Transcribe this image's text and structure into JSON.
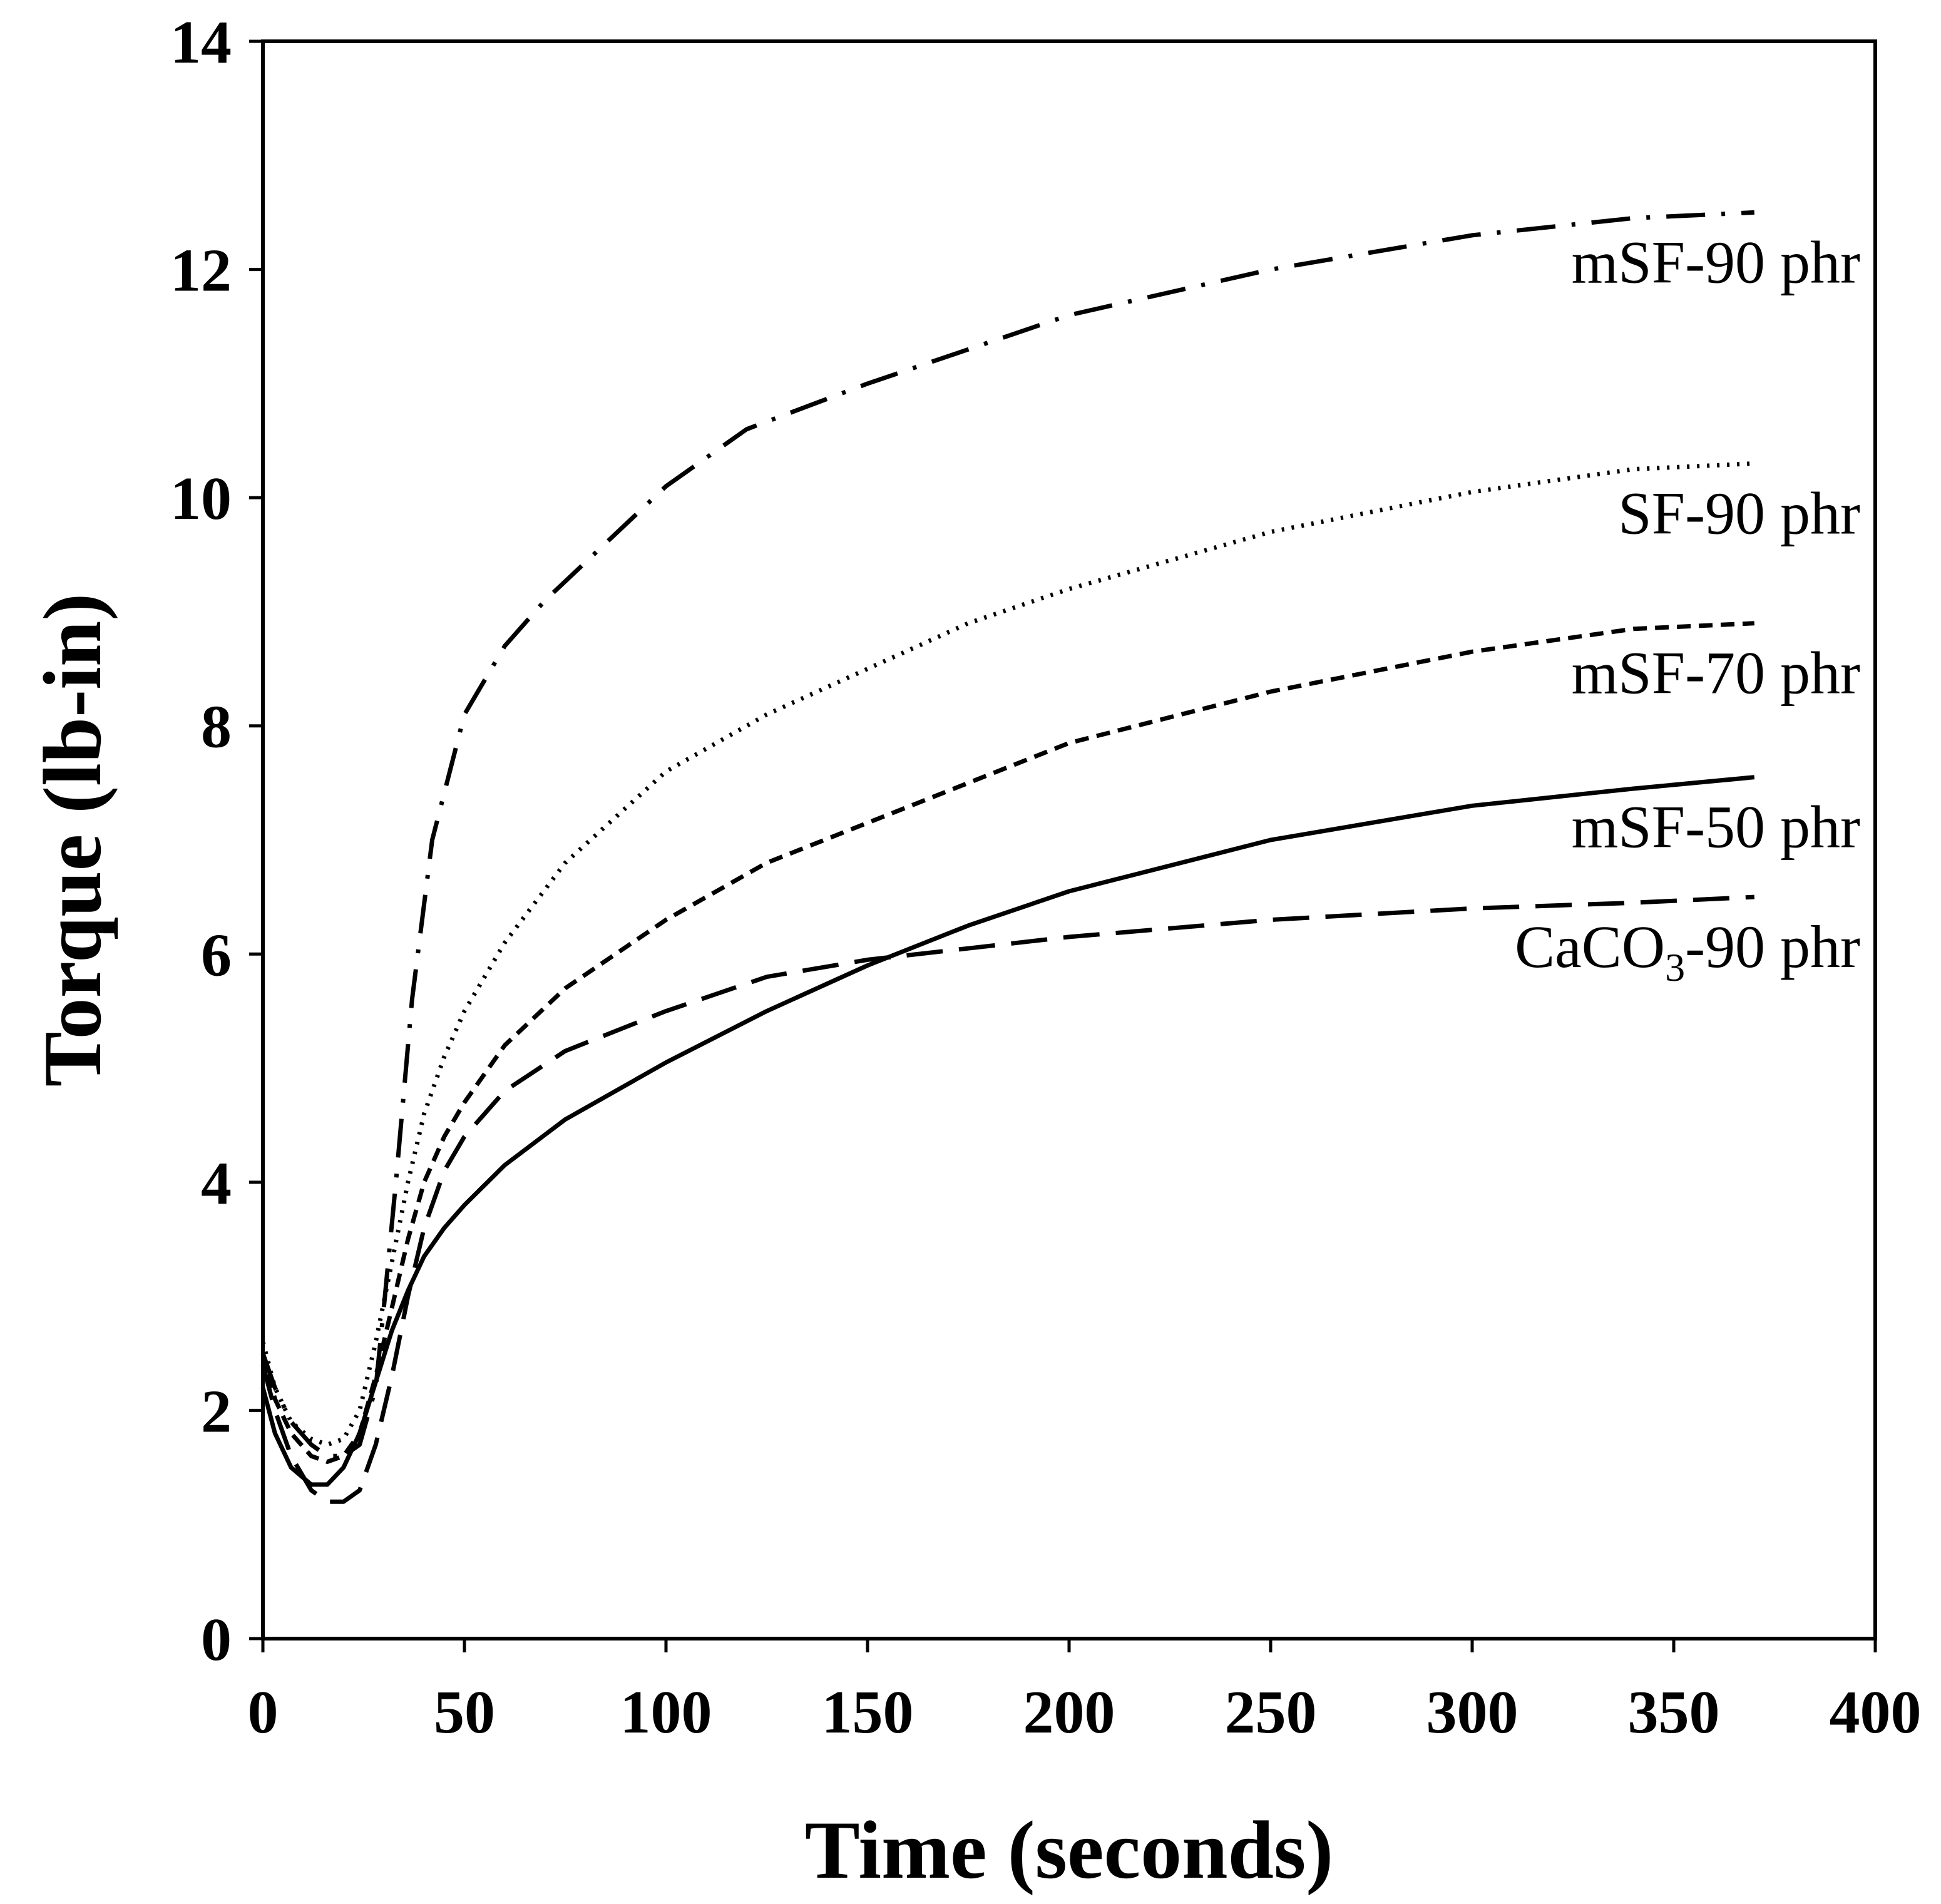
{
  "chart_data": {
    "type": "line",
    "title": "",
    "xlabel": "Time (seconds)",
    "ylabel": "Torque (lb-in)",
    "xlim": [
      0,
      400
    ],
    "ylim": [
      0,
      14
    ],
    "xticks": [
      0,
      50,
      100,
      150,
      200,
      250,
      300,
      350,
      400
    ],
    "yticks": [
      0,
      2,
      4,
      6,
      8,
      10,
      12,
      14
    ],
    "grid": false,
    "legend": "inline labels at right end of each curve",
    "series": [
      {
        "name": "mSF-90 phr",
        "label_main": "mSF-90 phr",
        "label_sub": "",
        "label_tail": "",
        "style": "dash-dot",
        "x": [
          0,
          3,
          7,
          12,
          16,
          20,
          24,
          28,
          30,
          33,
          37,
          42,
          50,
          60,
          70,
          85,
          100,
          120,
          150,
          175,
          200,
          250,
          300,
          340,
          370
        ],
        "y": [
          2.5,
          2.2,
          1.9,
          1.7,
          1.6,
          1.6,
          1.7,
          2.2,
          2.9,
          4.0,
          5.6,
          7.0,
          8.1,
          8.7,
          9.1,
          9.6,
          10.1,
          10.6,
          11.0,
          11.3,
          11.6,
          12.0,
          12.3,
          12.45,
          12.5
        ]
      },
      {
        "name": "SF-90 phr",
        "label_main": "SF-90 phr",
        "label_sub": "",
        "label_tail": "",
        "style": "dotted",
        "x": [
          0,
          3,
          7,
          12,
          16,
          20,
          24,
          28,
          32,
          36,
          40,
          45,
          50,
          60,
          75,
          100,
          125,
          150,
          175,
          200,
          250,
          300,
          340,
          370
        ],
        "y": [
          2.6,
          2.2,
          1.9,
          1.75,
          1.7,
          1.75,
          2.0,
          2.6,
          3.3,
          4.0,
          4.6,
          5.1,
          5.5,
          6.1,
          6.8,
          7.6,
          8.1,
          8.5,
          8.9,
          9.2,
          9.7,
          10.05,
          10.25,
          10.3
        ]
      },
      {
        "name": "mSF-70 phr",
        "label_main": "mSF-70 phr",
        "label_sub": "",
        "label_tail": "",
        "style": "short-dash",
        "x": [
          0,
          3,
          7,
          12,
          16,
          20,
          24,
          28,
          32,
          36,
          40,
          45,
          50,
          60,
          75,
          100,
          125,
          150,
          175,
          200,
          250,
          300,
          340,
          370
        ],
        "y": [
          2.5,
          2.1,
          1.8,
          1.6,
          1.55,
          1.6,
          1.8,
          2.3,
          2.9,
          3.5,
          4.0,
          4.4,
          4.7,
          5.2,
          5.7,
          6.3,
          6.8,
          7.15,
          7.5,
          7.85,
          8.3,
          8.65,
          8.85,
          8.9
        ]
      },
      {
        "name": "mSF-50 phr",
        "label_main": "mSF-50 phr",
        "label_sub": "",
        "label_tail": "",
        "style": "solid",
        "x": [
          0,
          3,
          7,
          12,
          16,
          20,
          24,
          28,
          32,
          36,
          40,
          45,
          50,
          60,
          75,
          100,
          125,
          150,
          175,
          200,
          250,
          300,
          340,
          370
        ],
        "y": [
          2.2,
          1.8,
          1.5,
          1.35,
          1.35,
          1.5,
          1.8,
          2.25,
          2.7,
          3.05,
          3.35,
          3.6,
          3.8,
          4.15,
          4.55,
          5.05,
          5.5,
          5.9,
          6.25,
          6.55,
          7.0,
          7.3,
          7.45,
          7.55
        ]
      },
      {
        "name": "CaCO3-90 phr",
        "label_main": "CaCO",
        "label_sub": "3",
        "label_tail": "-90 phr",
        "style": "long-dash",
        "x": [
          0,
          3,
          7,
          12,
          16,
          20,
          24,
          28,
          32,
          36,
          40,
          45,
          50,
          55,
          60,
          75,
          100,
          125,
          150,
          175,
          200,
          250,
          300,
          340,
          370
        ],
        "y": [
          2.4,
          2.0,
          1.6,
          1.3,
          1.2,
          1.2,
          1.3,
          1.7,
          2.3,
          3.0,
          3.6,
          4.1,
          4.4,
          4.6,
          4.8,
          5.15,
          5.5,
          5.8,
          5.95,
          6.05,
          6.15,
          6.3,
          6.4,
          6.45,
          6.5
        ]
      }
    ]
  }
}
